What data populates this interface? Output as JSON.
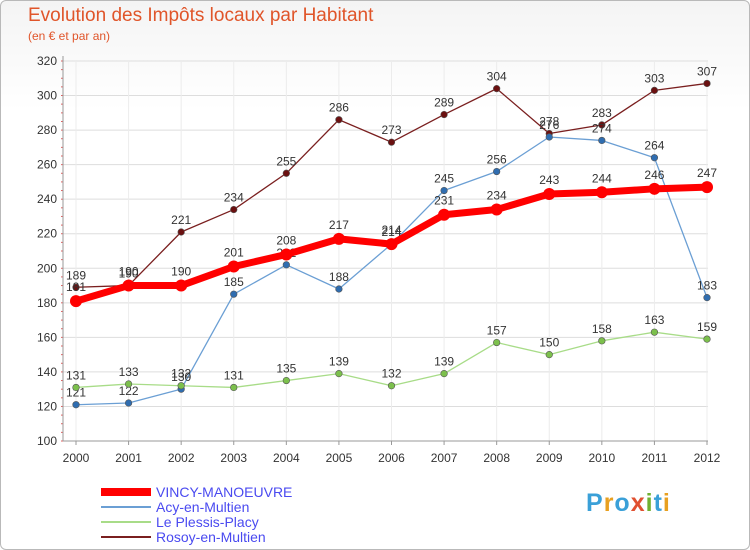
{
  "title": "Evolution des Impôts locaux par Habitant",
  "subtitle": "(en € et par an)",
  "logo": {
    "text": "Proxiti",
    "colors": [
      "#3aa0d8",
      "#e8a020",
      "#3aa0d8",
      "#e05030",
      "#70b030",
      "#3aa0d8",
      "#e8a020"
    ]
  },
  "chart_data": {
    "type": "line",
    "x": [
      "2000",
      "2001",
      "2002",
      "2003",
      "2004",
      "2005",
      "2006",
      "2007",
      "2008",
      "2009",
      "2010",
      "2011",
      "2012"
    ],
    "ylim": [
      100,
      320
    ],
    "yticks": [
      100,
      120,
      140,
      160,
      180,
      200,
      220,
      240,
      260,
      280,
      300,
      320
    ],
    "grid": true,
    "legend_position": "bottom-left",
    "series": [
      {
        "name": "Rosoy-en-Multien",
        "color": "#7a1f1f",
        "marker": "#6b1010",
        "values": [
          189,
          190,
          221,
          234,
          255,
          286,
          273,
          289,
          304,
          278,
          283,
          303,
          307
        ]
      },
      {
        "name": "Acy-en-Multien",
        "color": "#6b9fd4",
        "marker": "#2f6db0",
        "values": [
          121,
          122,
          130,
          185,
          202,
          188,
          214,
          245,
          256,
          276,
          274,
          264,
          183
        ]
      },
      {
        "name": "Le Plessis-Placy",
        "color": "#a8dc88",
        "marker": "#7cc04c",
        "values": [
          131,
          133,
          132,
          131,
          135,
          139,
          132,
          139,
          157,
          150,
          158,
          163,
          159
        ]
      },
      {
        "name": "VINCY-MANOEUVRE",
        "color": "#ff0000",
        "marker": "#ff0000",
        "values": [
          181,
          190,
          190,
          201,
          208,
          217,
          214,
          231,
          234,
          243,
          244,
          246,
          247
        ]
      }
    ],
    "legend": [
      "VINCY-MANOEUVRE",
      "Acy-en-Multien",
      "Le Plessis-Placy",
      "Rosoy-en-Multien"
    ]
  }
}
